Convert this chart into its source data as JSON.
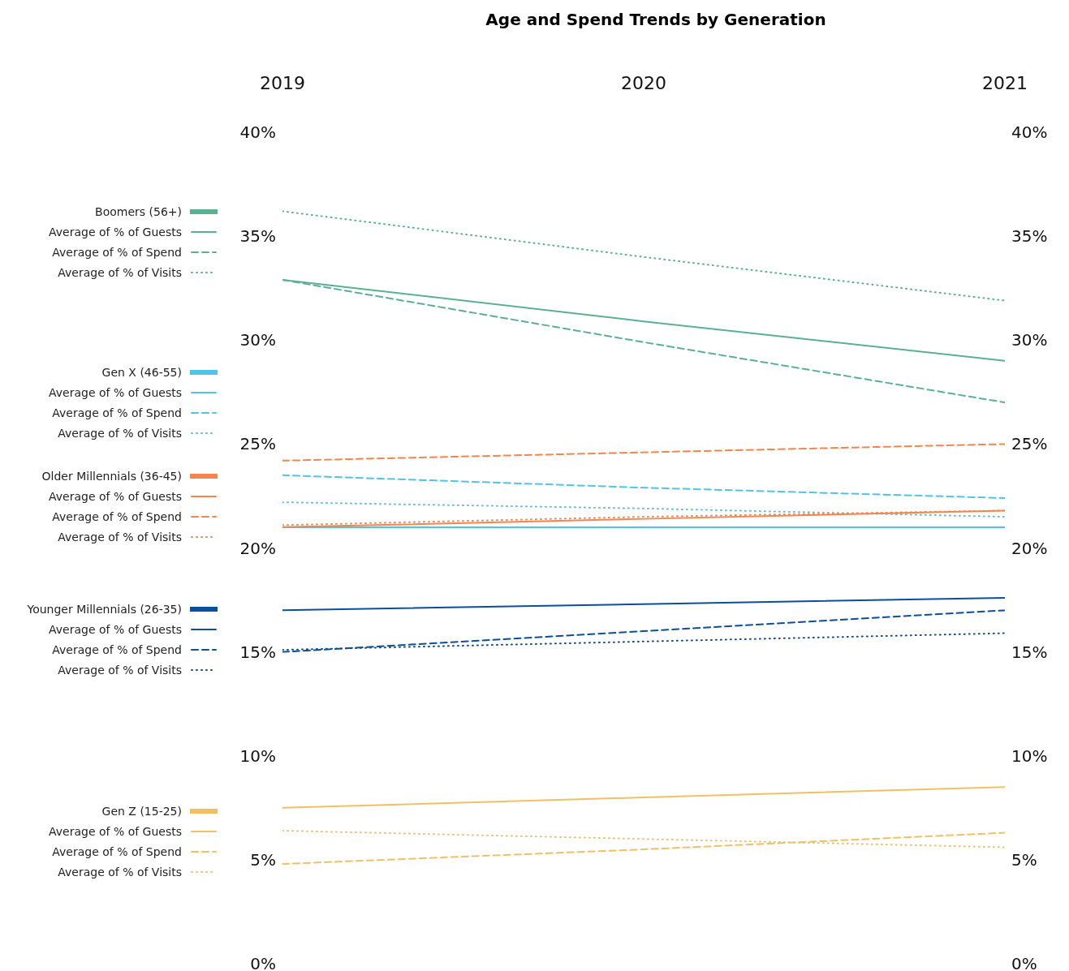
{
  "chart_data": {
    "type": "line",
    "title": "Age and Spend Trends by Generation",
    "x": [
      2019,
      2020,
      2021
    ],
    "xlim": [
      2019,
      2021
    ],
    "xticks": [
      2019,
      2020,
      2021
    ],
    "ylim": [
      0,
      40
    ],
    "yticks": [
      {
        "value": 0,
        "label": "0%"
      },
      {
        "value": 5,
        "label": "5%"
      },
      {
        "value": 10,
        "label": "10%"
      },
      {
        "value": 15,
        "label": "15%"
      },
      {
        "value": 20,
        "label": "20%"
      },
      {
        "value": 25,
        "label": "25%"
      },
      {
        "value": 30,
        "label": "30%"
      },
      {
        "value": 35,
        "label": "35%"
      },
      {
        "value": 40,
        "label": "40%"
      }
    ],
    "y2lim": [
      0,
      40
    ],
    "y2ticks": [
      {
        "value": 0,
        "label": "0%"
      },
      {
        "value": 5,
        "label": "5%"
      },
      {
        "value": 10,
        "label": "10%"
      },
      {
        "value": 15,
        "label": "15%"
      },
      {
        "value": 20,
        "label": "20%"
      },
      {
        "value": 25,
        "label": "25%"
      },
      {
        "value": 30,
        "label": "30%"
      },
      {
        "value": 35,
        "label": "35%"
      },
      {
        "value": 40,
        "label": "40%"
      }
    ],
    "legend": "left",
    "marker": "none",
    "series": [
      {
        "name": "Boomers (56+)",
        "color": "#5ab190",
        "values": [
          null,
          null,
          null
        ]
      },
      {
        "name": "Average of % of Guests",
        "color": "#5ab190",
        "line_style": "solid",
        "values": [
          32.9,
          30.9,
          29.0
        ]
      },
      {
        "name": "Average of % of Spend",
        "color": "#5ab190",
        "line_style": "dashed",
        "values": [
          32.9,
          29.9,
          27.0
        ]
      },
      {
        "name": "Average of % of Visits",
        "color": "#5ab190",
        "line_style": "dotted",
        "values": [
          36.2,
          34.0,
          31.9
        ]
      },
      {
        "name": "Gen X (46-55)",
        "color": "#4fc3e8",
        "values": [
          null,
          null,
          null
        ]
      },
      {
        "name": "Average of % of Guests",
        "color": "#4fc3e8",
        "line_style": "solid",
        "values": [
          21.0,
          21.0,
          21.0
        ]
      },
      {
        "name": "Average of % of Spend",
        "color": "#4fc3e8",
        "line_style": "dashed",
        "values": [
          23.5,
          22.9,
          22.4
        ]
      },
      {
        "name": "Average of % of Visits",
        "color": "#4fc3e8",
        "line_style": "dotted",
        "values": [
          22.2,
          21.9,
          21.5
        ]
      },
      {
        "name": "Older Millennials (36-45)",
        "color": "#f7844a",
        "values": [
          null,
          null,
          null
        ]
      },
      {
        "name": "Average of % of Guests",
        "color": "#f7844a",
        "line_style": "solid",
        "values": [
          21.0,
          21.4,
          21.8
        ]
      },
      {
        "name": "Average of % of Spend",
        "color": "#f7844a",
        "line_style": "dashed",
        "values": [
          24.2,
          24.6,
          25.0
        ]
      },
      {
        "name": "Average of % of Visits",
        "color": "#f7844a",
        "line_style": "dotted",
        "values": [
          21.1,
          21.5,
          21.8
        ]
      },
      {
        "name": "Younger Millennials (26-35)",
        "color": "#0a4f9e",
        "values": [
          null,
          null,
          null
        ]
      },
      {
        "name": "Average of % of Guests",
        "color": "#0a4f9e",
        "line_style": "solid",
        "values": [
          17.0,
          17.3,
          17.6
        ]
      },
      {
        "name": "Average of % of Spend",
        "color": "#0a4f9e",
        "line_style": "dashed",
        "values": [
          15.0,
          16.0,
          17.0
        ]
      },
      {
        "name": "Average of % of Visits",
        "color": "#0a4f9e",
        "line_style": "dotted",
        "values": [
          15.1,
          15.5,
          15.9
        ]
      },
      {
        "name": "Gen Z (15-25)",
        "color": "#f2c063",
        "values": [
          null,
          null,
          null
        ]
      },
      {
        "name": "Average of % of Guests",
        "color": "#f2c063",
        "line_style": "solid",
        "values": [
          7.5,
          8.0,
          8.5
        ]
      },
      {
        "name": "Average of % of Spend",
        "color": "#f2c063",
        "line_style": "dashed",
        "values": [
          4.8,
          5.5,
          6.3
        ]
      },
      {
        "name": "Average of % of Visits",
        "color": "#f2c063",
        "line_style": "dotted",
        "values": [
          6.4,
          6.0,
          5.6
        ]
      }
    ]
  }
}
